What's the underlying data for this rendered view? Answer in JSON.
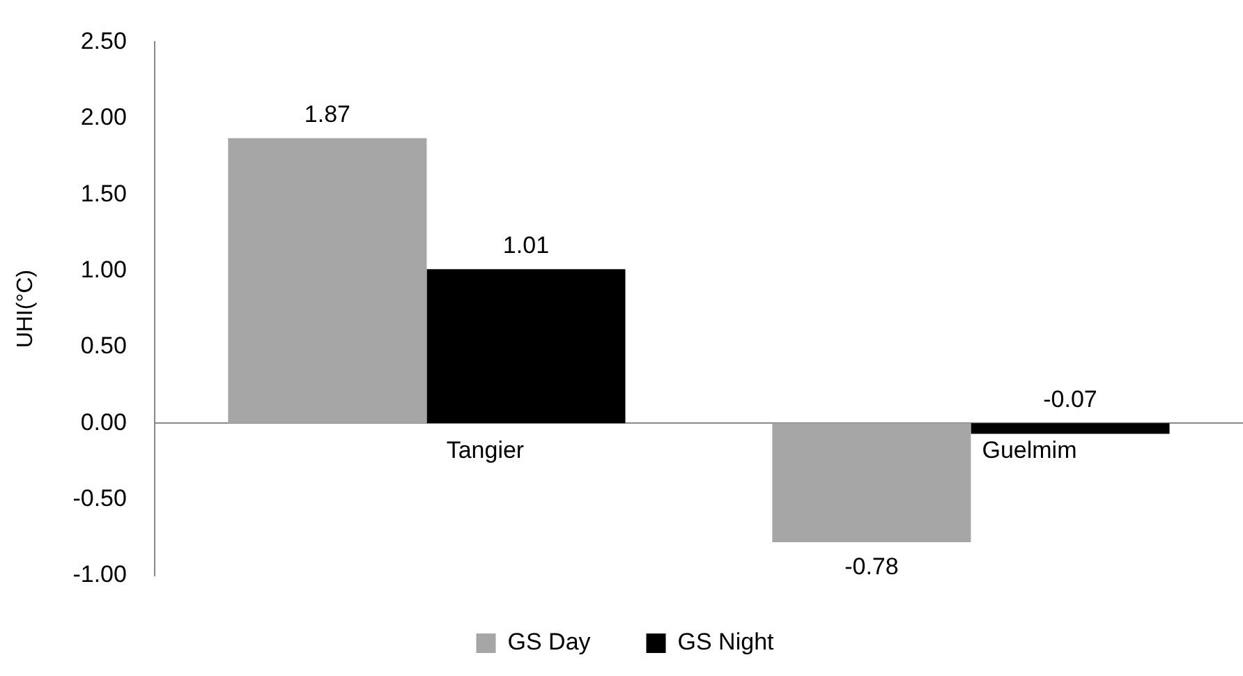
{
  "chart_data": {
    "type": "bar",
    "ylabel": "UHI(°C)",
    "categories": [
      "Tangier",
      "Guelmim"
    ],
    "series": [
      {
        "name": "GS Day",
        "color": "#a6a6a6",
        "values": [
          1.87,
          -0.78
        ]
      },
      {
        "name": "GS Night",
        "color": "#000000",
        "values": [
          1.01,
          -0.07
        ]
      }
    ],
    "ylim": [
      -1,
      2.5
    ],
    "yticks": [
      {
        "value": -1,
        "label": "-1.00"
      },
      {
        "value": -0.5,
        "label": "-0.50"
      },
      {
        "value": 0,
        "label": "0.00"
      },
      {
        "value": 0.5,
        "label": "0.50"
      },
      {
        "value": 1,
        "label": "1.00"
      },
      {
        "value": 1.5,
        "label": "1.50"
      },
      {
        "value": 2,
        "label": "2.00"
      },
      {
        "value": 2.5,
        "label": "2.50"
      }
    ],
    "data_labels": true,
    "grid": false,
    "legend": "bottom"
  }
}
